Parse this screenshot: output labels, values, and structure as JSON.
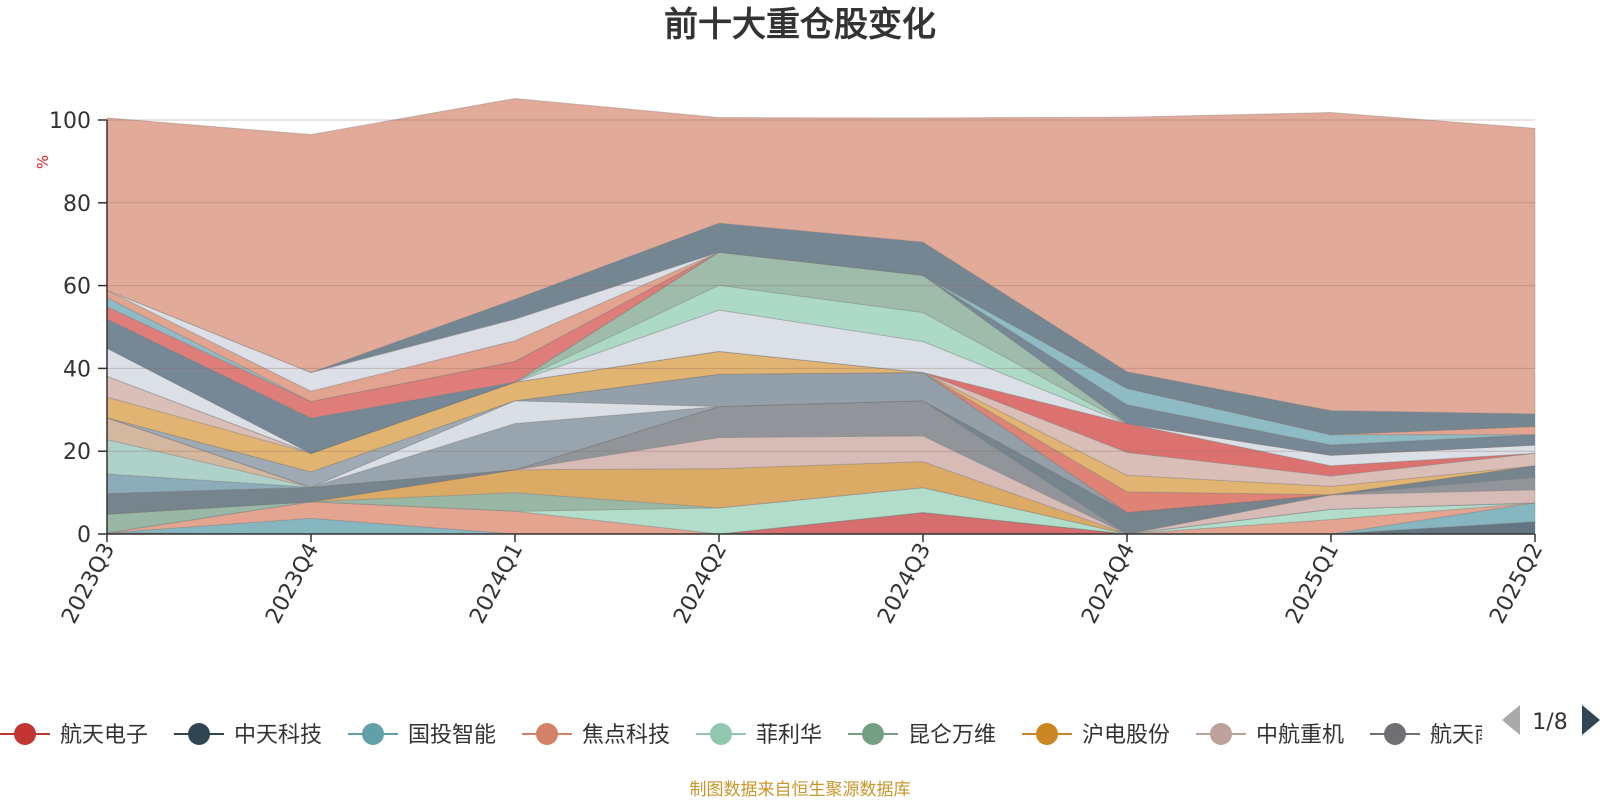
{
  "chart_data": {
    "type": "area",
    "stacked": true,
    "title": "前十大重仓股变化",
    "y_unit": "%",
    "ylim": [
      0,
      100
    ],
    "y_ticks": [
      0,
      20,
      40,
      60,
      80,
      100
    ],
    "categories": [
      "2023Q3",
      "2023Q4",
      "2024Q1",
      "2024Q2",
      "2024Q3",
      "2024Q4",
      "2025Q1",
      "2025Q2"
    ],
    "series": [
      {
        "name": "航天电子",
        "color": "#d36664",
        "values": [
          0.3,
          0,
          0,
          0,
          5.2,
          0,
          0,
          0
        ]
      },
      {
        "name": "中天科技",
        "color": "#5b6d7b",
        "values": [
          0,
          0,
          0,
          0,
          0,
          0,
          0,
          3.0
        ]
      },
      {
        "name": "国投智能",
        "color": "#7fb3bd",
        "values": [
          0,
          3.8,
          0,
          0,
          0,
          0,
          0,
          4.5
        ]
      },
      {
        "name": "焦点科技",
        "color": "#e3a08a",
        "values": [
          0,
          4.0,
          5.5,
          0,
          0,
          0,
          3.5,
          0
        ]
      },
      {
        "name": "菲利华",
        "color": "#aedbc7",
        "values": [
          0,
          0,
          0,
          6.3,
          6.0,
          0,
          2.5,
          0
        ]
      },
      {
        "name": "昆仑万维",
        "color": "#93b3a0",
        "values": [
          4.5,
          0,
          4.5,
          0,
          0,
          0,
          0,
          0
        ]
      },
      {
        "name": "沪电股份",
        "color": "#d9a65e",
        "values": [
          0,
          0,
          5.5,
          9.5,
          6.3,
          0,
          0,
          0
        ]
      },
      {
        "name": "中航重机",
        "color": "#d4b7b3",
        "values": [
          0,
          0,
          0,
          7.5,
          6.2,
          0,
          3.5,
          3.2
        ]
      },
      {
        "name": "航天南湖",
        "color": "#8b8f94",
        "values": [
          0,
          0,
          0,
          7.5,
          8.5,
          0,
          0,
          3.0
        ]
      }
    ],
    "other_bands": [
      {
        "color": "#6f7d88",
        "values": [
          5.0,
          3.5,
          0,
          0,
          0,
          5.2,
          0,
          2.8
        ]
      },
      {
        "color": "#86a8b6",
        "values": [
          4.7,
          0,
          0,
          0,
          0,
          0,
          0,
          0
        ]
      },
      {
        "color": "#aad0c6",
        "values": [
          8.3,
          0,
          0,
          0,
          0,
          0,
          0,
          0
        ]
      },
      {
        "color": "#d1b39a",
        "values": [
          5.3,
          0,
          0,
          0,
          0,
          0,
          0,
          0
        ]
      },
      {
        "color": "#94a0aa",
        "values": [
          0,
          0,
          11.2,
          0,
          0,
          0,
          0,
          0
        ]
      },
      {
        "color": "#d8dce4",
        "values": [
          0,
          0,
          5.5,
          0,
          0,
          0,
          0,
          0
        ]
      },
      {
        "color": "#8e9ba4",
        "values": [
          0,
          0,
          0,
          7.8,
          6.8,
          0,
          0,
          0
        ]
      },
      {
        "color": "#9aa6b0",
        "values": [
          0,
          3.7,
          0,
          0,
          0,
          0,
          0,
          0
        ]
      },
      {
        "color": "#dc7c6e",
        "values": [
          0,
          0,
          0,
          0,
          0,
          5.0,
          0,
          0
        ]
      },
      {
        "color": "#e0b06a",
        "values": [
          5.0,
          4.5,
          4.5,
          5.5,
          0,
          4.0,
          2.0,
          0
        ]
      },
      {
        "color": "#d8bcb5",
        "values": [
          5.0,
          0,
          0,
          0,
          0,
          5.5,
          2.5,
          3.0
        ]
      },
      {
        "color": "#d96a67",
        "values": [
          0,
          0,
          0,
          0,
          0,
          7.0,
          2.5,
          0
        ]
      },
      {
        "color": "#d9dde5",
        "values": [
          6.8,
          0,
          0,
          10.0,
          7.5,
          0,
          2.5,
          2.0
        ]
      },
      {
        "color": "#a9d8c4",
        "values": [
          0,
          0,
          0,
          6.0,
          7.0,
          0,
          0,
          0
        ]
      },
      {
        "color": "#9ab8a6",
        "values": [
          0,
          0,
          0,
          8.0,
          9.0,
          0,
          0,
          0
        ]
      },
      {
        "color": "#6f8190",
        "values": [
          7.0,
          8.5,
          0,
          0,
          0,
          4.5,
          2.5,
          2.5
        ]
      },
      {
        "color": "#dc7672",
        "values": [
          3.0,
          4.0,
          5.0,
          0,
          0,
          0,
          0,
          0
        ]
      },
      {
        "color": "#89b7c2",
        "values": [
          2.2,
          0,
          0,
          0,
          0,
          4.0,
          2.5,
          0
        ]
      },
      {
        "color": "#e09f88",
        "values": [
          1.8,
          2.5,
          5.0,
          0,
          0,
          0,
          0,
          2.0
        ]
      },
      {
        "color": "#dadde5",
        "values": [
          0,
          4.5,
          5.2,
          0,
          0,
          0,
          0,
          0
        ]
      },
      {
        "color": "#6e808d",
        "values": [
          0,
          0,
          4.8,
          7.0,
          8.0,
          4.0,
          5.8,
          3.0
        ]
      },
      {
        "color": "#e0a592",
        "values": [
          41.6,
          57.5,
          48.5,
          25.5,
          30.0,
          61.5,
          72.0,
          69.0
        ]
      }
    ]
  },
  "legend": {
    "items": [
      {
        "label": "航天电子",
        "color": "#c23531"
      },
      {
        "label": "中天科技",
        "color": "#2f4554"
      },
      {
        "label": "国投智能",
        "color": "#61a0a8"
      },
      {
        "label": "焦点科技",
        "color": "#d48265"
      },
      {
        "label": "菲利华",
        "color": "#91c7ae"
      },
      {
        "label": "昆仑万维",
        "color": "#749f83"
      },
      {
        "label": "沪电股份",
        "color": "#ca8622"
      },
      {
        "label": "中航重机",
        "color": "#bda29a"
      },
      {
        "label": "航天南湖",
        "color": "#6e7074"
      }
    ],
    "page_indicator": "1/8"
  },
  "source_note": "制图数据来自恒生聚源数据库"
}
